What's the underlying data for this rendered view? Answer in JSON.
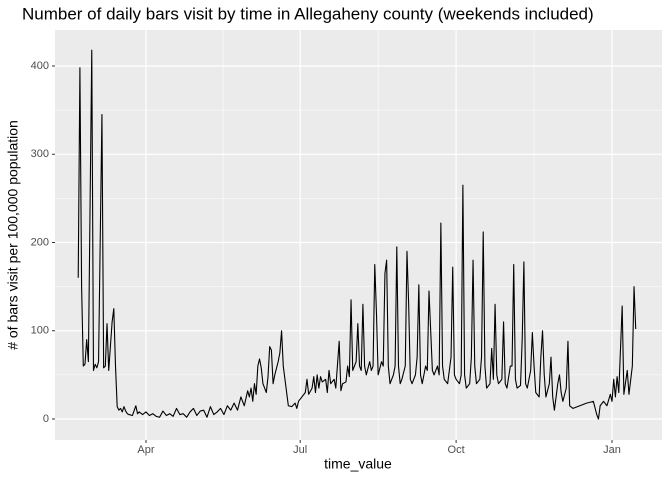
{
  "chart_data": {
    "type": "line",
    "title": "Number of daily bars visit by time in Allegaheny county (weekends included)",
    "x_label": "time_value",
    "y_label": "# of bars visit per 100,000 population",
    "color": "#000000",
    "grid": true,
    "xlim": [
      38.3,
      396.5
    ],
    "ylim": [
      -23.8,
      440.8
    ],
    "xticks": [
      {
        "value": 92,
        "label": "Apr"
      },
      {
        "value": 183,
        "label": "Jul"
      },
      {
        "value": 275,
        "label": "Oct"
      },
      {
        "value": 367,
        "label": "Jan"
      }
    ],
    "yticks": [
      0,
      100,
      200,
      300,
      400
    ],
    "x": [
      52,
      53,
      54,
      55,
      56,
      57,
      58,
      60,
      61,
      62,
      63,
      64,
      66,
      67,
      68,
      69,
      70,
      72,
      73,
      74,
      75,
      76,
      77,
      78,
      79,
      80,
      81,
      82,
      84,
      86,
      87,
      88,
      90,
      92,
      94,
      96,
      98,
      100,
      102,
      104,
      106,
      108,
      110,
      112,
      114,
      116,
      118,
      120,
      122,
      124,
      126,
      128,
      130,
      132,
      134,
      136,
      138,
      140,
      142,
      144,
      146,
      148,
      150,
      152,
      153,
      154,
      155,
      156,
      157,
      158,
      159,
      160,
      161,
      162,
      163,
      164,
      165,
      166,
      167,
      168,
      170,
      171,
      172,
      173,
      174,
      175,
      176,
      178,
      180,
      181,
      182,
      184,
      186,
      187,
      188,
      190,
      191,
      192,
      193,
      194,
      195,
      196,
      198,
      199,
      200,
      201,
      203,
      204,
      206,
      207,
      208,
      210,
      211,
      212,
      213,
      214,
      215,
      216,
      217,
      218,
      219,
      220,
      221,
      222,
      224,
      225,
      226,
      227,
      228,
      229,
      231,
      232,
      233,
      234,
      235,
      236,
      238,
      239,
      240,
      241,
      242,
      243,
      245,
      246,
      247,
      248,
      249,
      251,
      252,
      253,
      254,
      255,
      257,
      258,
      259,
      260,
      261,
      262,
      264,
      265,
      266,
      267,
      268,
      270,
      272,
      273,
      274,
      275,
      277,
      278,
      279,
      280,
      281,
      283,
      284,
      285,
      286,
      287,
      289,
      290,
      291,
      292,
      293,
      295,
      296,
      297,
      298,
      299,
      300,
      302,
      303,
      304,
      305,
      307,
      308,
      309,
      310,
      311,
      313,
      314,
      315,
      316,
      317,
      319,
      320,
      321,
      322,
      324,
      325,
      326,
      327,
      328,
      330,
      331,
      332,
      333,
      335,
      336,
      337,
      338,
      340,
      341,
      342,
      344,
      348,
      352,
      356,
      358,
      359,
      360,
      362,
      364,
      366,
      367,
      368,
      369,
      370,
      371,
      373,
      374,
      376,
      377,
      379,
      380,
      381
    ],
    "values": [
      160,
      398,
      150,
      60,
      62,
      90,
      65,
      418,
      55,
      62,
      58,
      65,
      345,
      58,
      60,
      108,
      55,
      110,
      125,
      60,
      14,
      10,
      12,
      8,
      14,
      9,
      6,
      5,
      4,
      15,
      6,
      8,
      5,
      8,
      4,
      6,
      3,
      2,
      9,
      4,
      6,
      3,
      12,
      5,
      6,
      2,
      8,
      12,
      4,
      9,
      10,
      2,
      14,
      5,
      8,
      12,
      5,
      15,
      10,
      18,
      10,
      25,
      15,
      32,
      25,
      35,
      20,
      40,
      28,
      60,
      68,
      58,
      40,
      35,
      30,
      48,
      82,
      78,
      40,
      50,
      65,
      75,
      100,
      60,
      45,
      30,
      15,
      14,
      18,
      12,
      20,
      25,
      30,
      45,
      28,
      35,
      48,
      30,
      50,
      35,
      48,
      42,
      45,
      30,
      55,
      40,
      45,
      35,
      88,
      32,
      40,
      42,
      60,
      48,
      135,
      55,
      60,
      65,
      108,
      60,
      55,
      130,
      60,
      50,
      65,
      55,
      60,
      175,
      120,
      50,
      65,
      60,
      165,
      180,
      60,
      40,
      50,
      60,
      195,
      60,
      40,
      45,
      60,
      190,
      130,
      45,
      40,
      50,
      70,
      152,
      50,
      40,
      60,
      55,
      145,
      100,
      55,
      50,
      60,
      50,
      222,
      60,
      45,
      40,
      70,
      172,
      50,
      45,
      40,
      50,
      265,
      50,
      35,
      40,
      70,
      180,
      60,
      40,
      45,
      70,
      212,
      60,
      35,
      40,
      80,
      45,
      130,
      50,
      40,
      45,
      110,
      40,
      35,
      60,
      60,
      175,
      45,
      35,
      38,
      90,
      178,
      40,
      35,
      55,
      98,
      60,
      30,
      25,
      70,
      100,
      50,
      25,
      40,
      70,
      25,
      10,
      40,
      50,
      30,
      20,
      35,
      88,
      15,
      12,
      15,
      18,
      20,
      5,
      0,
      15,
      20,
      15,
      28,
      20,
      45,
      25,
      48,
      30,
      128,
      28,
      55,
      28,
      60,
      150,
      102
    ]
  }
}
